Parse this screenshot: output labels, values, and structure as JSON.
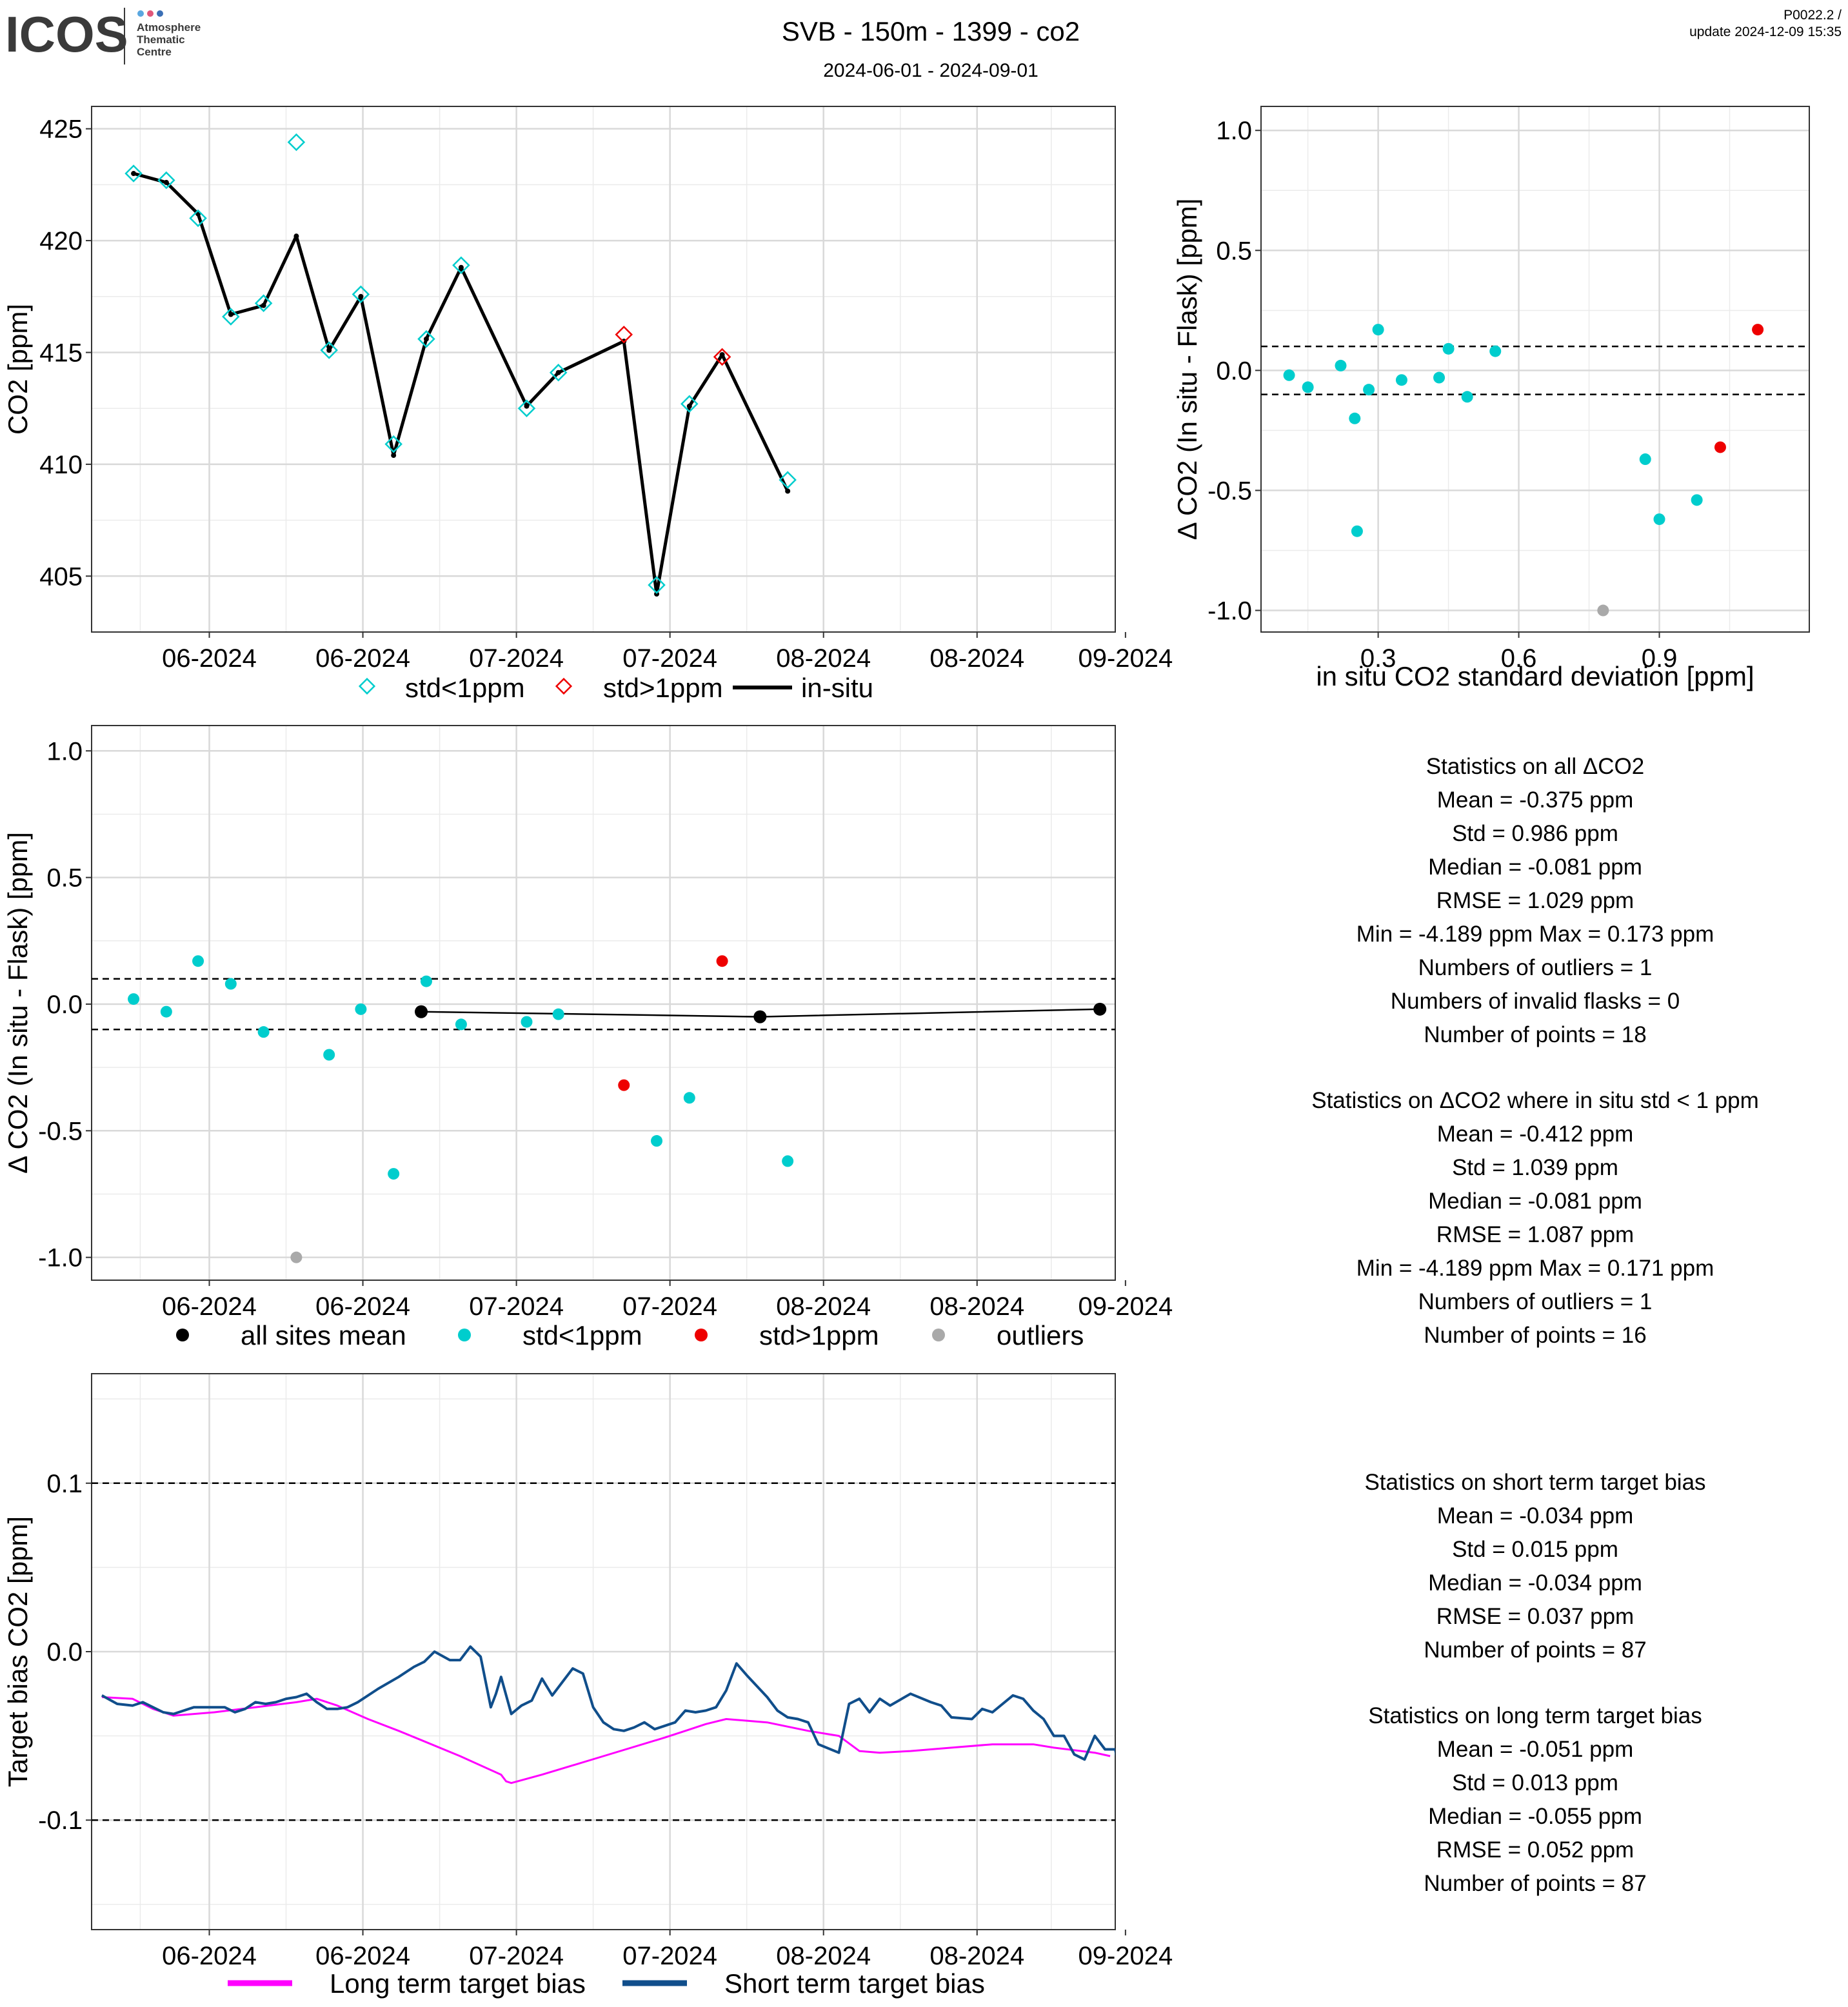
{
  "header": {
    "logo_text": "ICOS",
    "logo_sub": [
      "Atmosphere",
      "Thematic",
      "Centre"
    ],
    "title": "SVB - 150m - 1399 - co2",
    "subtitle": "2024-06-01 - 2024-09-01",
    "version": "P0022.2 /",
    "update": "update  2024-12-09 15:35"
  },
  "colors": {
    "cyan": "#00CDCD",
    "red": "#EE0000",
    "grey": "#A9A9A9",
    "black": "#000000",
    "magenta": "#FF00FF",
    "navy": "#104E8B"
  },
  "chart_data": [
    {
      "id": "p1",
      "type": "line",
      "ylabel": "CO2 [ppm]",
      "ylim": [
        402.5,
        426
      ],
      "xlim": [
        0,
        100
      ],
      "yticks": [
        405,
        410,
        415,
        420,
        425
      ],
      "xticks": [
        {
          "x": 11.5,
          "label": "06-2024"
        },
        {
          "x": 26.5,
          "label": "06-2024"
        },
        {
          "x": 41.5,
          "label": "07-2024"
        },
        {
          "x": 56.5,
          "label": "07-2024"
        },
        {
          "x": 71.5,
          "label": "08-2024"
        },
        {
          "x": 86.5,
          "label": "08-2024"
        },
        {
          "x": 101,
          "label": "09-2024"
        }
      ],
      "insitu": [
        [
          4.1,
          423.0
        ],
        [
          7.3,
          422.6
        ],
        [
          10.4,
          421.2
        ],
        [
          13.6,
          416.7
        ],
        [
          16.8,
          417.1
        ],
        [
          20.0,
          420.2
        ],
        [
          23.2,
          415.1
        ],
        [
          26.3,
          417.5
        ],
        [
          29.5,
          410.4
        ],
        [
          32.7,
          415.6
        ],
        [
          36.1,
          418.8
        ],
        [
          42.5,
          412.6
        ],
        [
          45.6,
          414.1
        ],
        [
          52.0,
          415.5
        ],
        [
          55.2,
          404.2
        ],
        [
          58.4,
          412.6
        ],
        [
          61.6,
          414.9
        ],
        [
          68.0,
          408.8
        ]
      ],
      "flask_std_lt1": [
        [
          4.1,
          423.0
        ],
        [
          7.3,
          422.7
        ],
        [
          10.4,
          421.0
        ],
        [
          13.6,
          416.6
        ],
        [
          16.8,
          417.2
        ],
        [
          20.0,
          424.4
        ],
        [
          23.2,
          415.1
        ],
        [
          26.3,
          417.6
        ],
        [
          29.5,
          410.9
        ],
        [
          32.7,
          415.6
        ],
        [
          36.1,
          418.9
        ],
        [
          42.5,
          412.5
        ],
        [
          45.6,
          414.1
        ],
        [
          55.2,
          404.6
        ],
        [
          58.4,
          412.7
        ],
        [
          68.0,
          409.3
        ]
      ],
      "flask_std_gt1": [
        [
          52.0,
          415.8
        ],
        [
          61.6,
          414.8
        ]
      ],
      "legend": [
        "std<1ppm",
        "std>1ppm",
        "in-situ"
      ]
    },
    {
      "id": "p2",
      "type": "scatter",
      "xlabel": "in situ CO2 standard deviation [ppm]",
      "ylabel": "Δ CO2 (In situ - Flask) [ppm]",
      "xlim": [
        0.05,
        1.22
      ],
      "ylim": [
        -1.09,
        1.1
      ],
      "xticks": [
        0.3,
        0.6,
        0.9
      ],
      "yticks": [
        1.0,
        0.5,
        0.0,
        -0.5,
        -1.0
      ],
      "hlines": [
        0.1,
        -0.1
      ],
      "std_lt1": [
        [
          0.11,
          -0.02
        ],
        [
          0.15,
          -0.07
        ],
        [
          0.22,
          0.02
        ],
        [
          0.25,
          -0.2
        ],
        [
          0.255,
          -0.67
        ],
        [
          0.28,
          -0.08
        ],
        [
          0.3,
          0.17
        ],
        [
          0.35,
          -0.04
        ],
        [
          0.43,
          -0.03
        ],
        [
          0.45,
          0.09
        ],
        [
          0.49,
          -0.11
        ],
        [
          0.55,
          0.08
        ],
        [
          0.87,
          -0.37
        ],
        [
          0.9,
          -0.62
        ],
        [
          0.98,
          -0.54
        ]
      ],
      "std_gt1": [
        [
          1.03,
          -0.32
        ],
        [
          1.11,
          0.17
        ]
      ],
      "outliers": [
        [
          0.78,
          -1.0
        ]
      ]
    },
    {
      "id": "p3",
      "type": "scatter",
      "ylabel": "Δ CO2 (In situ - Flask) [ppm]",
      "xlim": [
        0,
        100
      ],
      "ylim": [
        -1.09,
        1.1
      ],
      "yticks": [
        1.0,
        0.5,
        0.0,
        -0.5,
        -1.0
      ],
      "xticks": [
        {
          "x": 11.5,
          "label": "06-2024"
        },
        {
          "x": 26.5,
          "label": "06-2024"
        },
        {
          "x": 41.5,
          "label": "07-2024"
        },
        {
          "x": 56.5,
          "label": "07-2024"
        },
        {
          "x": 71.5,
          "label": "08-2024"
        },
        {
          "x": 86.5,
          "label": "08-2024"
        },
        {
          "x": 101,
          "label": "09-2024"
        }
      ],
      "hlines": [
        0.1,
        -0.1
      ],
      "mean": [
        [
          32.2,
          -0.03
        ],
        [
          65.3,
          -0.05
        ],
        [
          98.5,
          -0.02
        ]
      ],
      "std_lt1": [
        [
          4.1,
          0.02
        ],
        [
          7.3,
          -0.03
        ],
        [
          10.4,
          0.17
        ],
        [
          13.6,
          0.08
        ],
        [
          16.8,
          -0.11
        ],
        [
          23.2,
          -0.2
        ],
        [
          26.3,
          -0.02
        ],
        [
          29.5,
          -0.67
        ],
        [
          32.7,
          0.09
        ],
        [
          36.1,
          -0.08
        ],
        [
          42.5,
          -0.07
        ],
        [
          45.6,
          -0.04
        ],
        [
          55.2,
          -0.54
        ],
        [
          58.4,
          -0.37
        ],
        [
          68.0,
          -0.62
        ]
      ],
      "std_gt1": [
        [
          52.0,
          -0.32
        ],
        [
          61.6,
          0.17
        ]
      ],
      "outliers": [
        [
          20.0,
          -1.0
        ]
      ],
      "legend": [
        "all sites mean",
        "std<1ppm",
        "std>1ppm",
        "outliers"
      ]
    },
    {
      "id": "p4",
      "type": "line",
      "ylabel": "Target bias CO2 [ppm]",
      "xlim": [
        0,
        100
      ],
      "ylim": [
        -0.165,
        0.165
      ],
      "yticks": [
        0.1,
        0.0,
        -0.1
      ],
      "yticklabels": [
        "0.1",
        "0.0",
        "-0.1"
      ],
      "xticks": [
        {
          "x": 11.5,
          "label": "06-2024"
        },
        {
          "x": 26.5,
          "label": "06-2024"
        },
        {
          "x": 41.5,
          "label": "07-2024"
        },
        {
          "x": 56.5,
          "label": "07-2024"
        },
        {
          "x": 71.5,
          "label": "08-2024"
        },
        {
          "x": 86.5,
          "label": "08-2024"
        },
        {
          "x": 101,
          "label": "09-2024"
        }
      ],
      "hlines": [
        0.1,
        -0.1
      ],
      "long_term": [
        [
          1,
          -0.027
        ],
        [
          4,
          -0.028
        ],
        [
          6,
          -0.034
        ],
        [
          8,
          -0.038
        ],
        [
          12,
          -0.036
        ],
        [
          16,
          -0.033
        ],
        [
          20,
          -0.03
        ],
        [
          22,
          -0.028
        ],
        [
          24,
          -0.032
        ],
        [
          27,
          -0.04
        ],
        [
          30,
          -0.047
        ],
        [
          32,
          -0.052
        ],
        [
          36,
          -0.062
        ],
        [
          40,
          -0.073
        ],
        [
          40.5,
          -0.077
        ],
        [
          41,
          -0.078
        ],
        [
          44,
          -0.073
        ],
        [
          50,
          -0.062
        ],
        [
          56,
          -0.051
        ],
        [
          58,
          -0.047
        ],
        [
          60,
          -0.043
        ],
        [
          62,
          -0.04
        ],
        [
          66,
          -0.042
        ],
        [
          70,
          -0.047
        ],
        [
          73,
          -0.05
        ],
        [
          75,
          -0.059
        ],
        [
          77,
          -0.06
        ],
        [
          80,
          -0.059
        ],
        [
          84,
          -0.057
        ],
        [
          88,
          -0.055
        ],
        [
          92,
          -0.055
        ],
        [
          94,
          -0.057
        ],
        [
          98,
          -0.06
        ],
        [
          99.5,
          -0.062
        ]
      ],
      "short_term": [
        [
          1,
          -0.026
        ],
        [
          2.5,
          -0.031
        ],
        [
          4,
          -0.032
        ],
        [
          5,
          -0.03
        ],
        [
          7,
          -0.036
        ],
        [
          8,
          -0.037
        ],
        [
          10,
          -0.033
        ],
        [
          11.5,
          -0.033
        ],
        [
          13,
          -0.033
        ],
        [
          14,
          -0.036
        ],
        [
          15,
          -0.034
        ],
        [
          16,
          -0.03
        ],
        [
          17,
          -0.031
        ],
        [
          18,
          -0.03
        ],
        [
          19,
          -0.028
        ],
        [
          20,
          -0.027
        ],
        [
          21,
          -0.025
        ],
        [
          22,
          -0.03
        ],
        [
          23,
          -0.034
        ],
        [
          24,
          -0.034
        ],
        [
          25,
          -0.033
        ],
        [
          26,
          -0.03
        ],
        [
          28,
          -0.022
        ],
        [
          30,
          -0.015
        ],
        [
          31.5,
          -0.009
        ],
        [
          32.5,
          -0.006
        ],
        [
          33.5,
          0.0
        ],
        [
          35,
          -0.005
        ],
        [
          36,
          -0.005
        ],
        [
          37,
          0.003
        ],
        [
          38,
          -0.003
        ],
        [
          39,
          -0.033
        ],
        [
          39.5,
          -0.025
        ],
        [
          40,
          -0.015
        ],
        [
          41,
          -0.037
        ],
        [
          42,
          -0.032
        ],
        [
          43,
          -0.029
        ],
        [
          44,
          -0.016
        ],
        [
          45,
          -0.026
        ],
        [
          46,
          -0.018
        ],
        [
          47,
          -0.01
        ],
        [
          48,
          -0.013
        ],
        [
          49,
          -0.033
        ],
        [
          50,
          -0.042
        ],
        [
          51,
          -0.046
        ],
        [
          52,
          -0.047
        ],
        [
          53,
          -0.045
        ],
        [
          54,
          -0.042
        ],
        [
          55,
          -0.046
        ],
        [
          57,
          -0.042
        ],
        [
          58,
          -0.035
        ],
        [
          59,
          -0.036
        ],
        [
          60,
          -0.035
        ],
        [
          61,
          -0.033
        ],
        [
          62,
          -0.023
        ],
        [
          63,
          -0.007
        ],
        [
          64,
          -0.014
        ],
        [
          66,
          -0.027
        ],
        [
          67,
          -0.035
        ],
        [
          68,
          -0.039
        ],
        [
          69,
          -0.04
        ],
        [
          70,
          -0.042
        ],
        [
          71,
          -0.055
        ],
        [
          73,
          -0.06
        ],
        [
          74,
          -0.031
        ],
        [
          75,
          -0.028
        ],
        [
          76,
          -0.036
        ],
        [
          77,
          -0.028
        ],
        [
          78,
          -0.032
        ],
        [
          80,
          -0.025
        ],
        [
          82,
          -0.03
        ],
        [
          83,
          -0.032
        ],
        [
          84,
          -0.039
        ],
        [
          86,
          -0.04
        ],
        [
          87,
          -0.034
        ],
        [
          88,
          -0.036
        ],
        [
          90,
          -0.026
        ],
        [
          91,
          -0.028
        ],
        [
          92,
          -0.035
        ],
        [
          93,
          -0.04
        ],
        [
          94,
          -0.05
        ],
        [
          95,
          -0.05
        ],
        [
          96,
          -0.061
        ],
        [
          97,
          -0.064
        ],
        [
          98,
          -0.05
        ],
        [
          99,
          -0.058
        ],
        [
          100,
          -0.058
        ],
        [
          100.5,
          -0.075
        ]
      ],
      "legend": [
        "Long term target bias",
        "Short term target bias"
      ]
    }
  ],
  "stats": {
    "all": {
      "title": "Statistics on all ΔCO2",
      "lines": [
        "Mean =  -0.375 ppm",
        "Std =  0.986 ppm",
        "Median =  -0.081 ppm",
        "RMSE =  1.029 ppm",
        "Min =  -4.189 ppm Max =  0.173 ppm",
        "Numbers of outliers =  1",
        "Numbers of invalid flasks =  0",
        "Number of points =  18"
      ]
    },
    "lt1": {
      "title": "Statistics on ΔCO2 where in situ std < 1 ppm",
      "lines": [
        "Mean =  -0.412 ppm",
        "Std =  1.039 ppm",
        "Median =  -0.081 ppm",
        "RMSE =  1.087 ppm",
        "Min =  -4.189 ppm Max =  0.171 ppm",
        "Numbers of outliers =  1",
        "Number of points =  16"
      ]
    },
    "short": {
      "title": "Statistics on short term target bias",
      "lines": [
        "Mean =  -0.034 ppm",
        "Std =  0.015 ppm",
        "Median =  -0.034 ppm",
        "RMSE =  0.037 ppm",
        "Number of points =  87"
      ]
    },
    "long": {
      "title": "Statistics on long term target bias",
      "lines": [
        "Mean =  -0.051 ppm",
        "Std =  0.013 ppm",
        "Median =  -0.055 ppm",
        "RMSE =  0.052 ppm",
        "Number of points =  87"
      ]
    }
  }
}
